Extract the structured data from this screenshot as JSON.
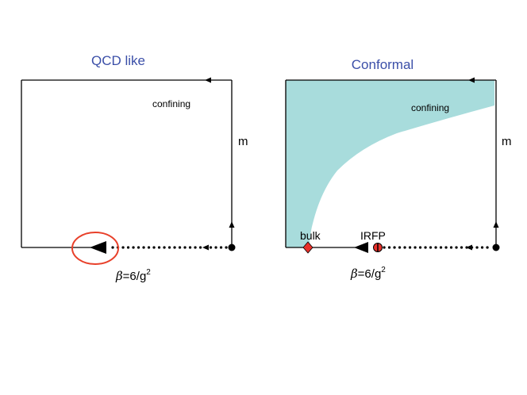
{
  "left_panel": {
    "title": "QCD like",
    "region_label": "confining",
    "y_axis_label": "m",
    "x_axis_symbol": "β",
    "x_axis_expr": "=6/g",
    "x_axis_exp": "2"
  },
  "right_panel": {
    "title": "Conformal",
    "region_label": "confining",
    "y_axis_label": "m",
    "x_axis_symbol": "β",
    "x_axis_expr": "=6/g",
    "x_axis_exp": "2",
    "bulk_label": "bulk",
    "irfp_label": "IRFP"
  },
  "colors": {
    "confining_region": "#a8dcdc",
    "fixed_point_marker": "#e8302a",
    "highlight_circle": "#e8402a",
    "title_text": "#3b4fa8"
  }
}
